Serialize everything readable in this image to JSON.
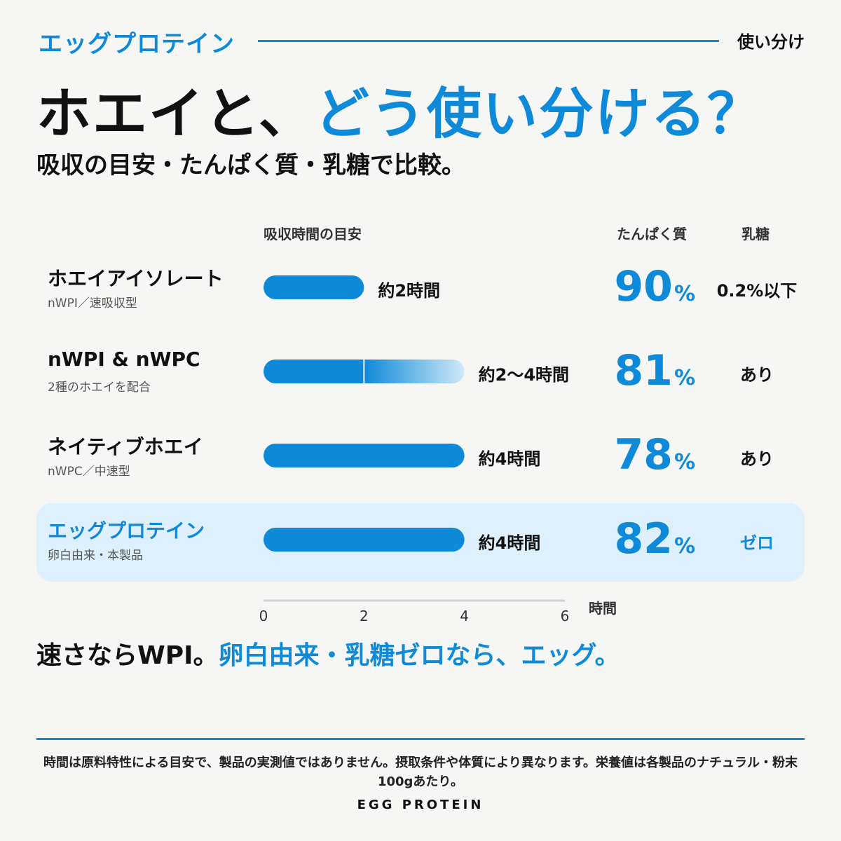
{
  "header": {
    "top_label": "エッグプロテイン",
    "top_right": "使い分け",
    "headline_part1": "ホエイと、",
    "headline_part2": "どう使い分ける？",
    "subhead": "吸収の目安・たんぱく質・乳糖で比較。"
  },
  "columns": {
    "absorption": "吸収時間の目安",
    "protein": "たんぱく質",
    "lactose": "乳糖"
  },
  "colors": {
    "accent": "#0f8ad8",
    "gradient_end": "#cfe9f8",
    "highlight_bg": "#ddf0fb",
    "axis": "#cfd3d8"
  },
  "chart_data": {
    "type": "bar",
    "orientation": "horizontal",
    "xlabel": "時間",
    "xlim": [
      0,
      6
    ],
    "x_ticks": [
      "0",
      "2",
      "4",
      "6"
    ],
    "rows": [
      {
        "name": "ホエイアイソレート",
        "sub": "nWPI／速吸収型",
        "range": [
          0,
          2
        ],
        "label": "約2時間",
        "protein": "90",
        "protein_unit": "%",
        "lactose": "0.2%以下",
        "highlight": false
      },
      {
        "name": "nWPI & nWPC",
        "sub": "2種のホエイを配合",
        "range": [
          0,
          4
        ],
        "solid_until": 2,
        "label": "約2〜4時間",
        "protein": "81",
        "protein_unit": "%",
        "lactose": "あり",
        "highlight": false
      },
      {
        "name": "ネイティブホエイ",
        "sub": "nWPC／中速型",
        "range": [
          0,
          4
        ],
        "label": "約4時間",
        "protein": "78",
        "protein_unit": "%",
        "lactose": "あり",
        "highlight": false
      },
      {
        "name": "エッグプロテイン",
        "sub": "卵白由来・本製品",
        "range": [
          0,
          4
        ],
        "label": "約4時間",
        "protein": "82",
        "protein_unit": "%",
        "lactose": "ゼロ",
        "highlight": true
      }
    ]
  },
  "bottom": {
    "line_part1": "速さならWPI。",
    "line_part2": "卵白由来・乳糖ゼロなら、エッグ。"
  },
  "footnote": "時間は原料特性による目安で、製品の実測値ではありません。摂取条件や体質により異なります。栄養値は各製品のナチュラル・粉末100gあたり。",
  "brand": "EGG PROTEIN"
}
